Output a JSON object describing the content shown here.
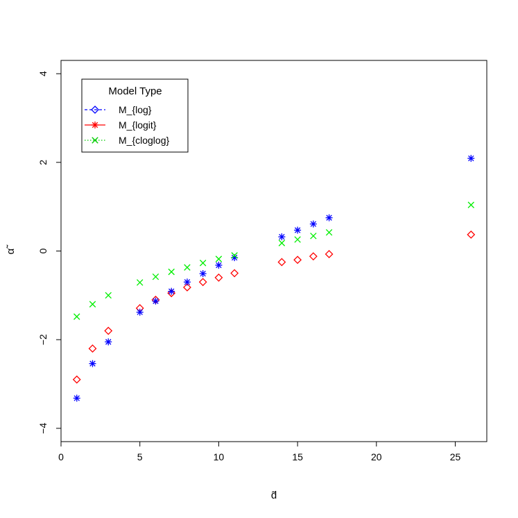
{
  "chart_data": {
    "type": "scatter",
    "xlabel": "d̃",
    "ylabel": "α̃",
    "xlim": [
      0,
      27
    ],
    "ylim": [
      -4.3,
      4.3
    ],
    "xticks": [
      0,
      5,
      10,
      15,
      20,
      25
    ],
    "yticks": [
      -4,
      -2,
      0,
      2,
      4
    ],
    "grid": false,
    "legend": {
      "title": "Model Type",
      "placement": "top-left",
      "entries": [
        {
          "label": "M_{log}",
          "color": "#0000ff",
          "marker": "diamond",
          "line": "dashed"
        },
        {
          "label": "M_{logit}",
          "color": "#ff0000",
          "marker": "asterisk",
          "line": "solid"
        },
        {
          "label": "M_{cloglog}",
          "color": "#00cc00",
          "marker": "cross",
          "line": "dotted"
        }
      ]
    },
    "series": [
      {
        "color": "#ff0000",
        "marker": "diamond",
        "x": [
          1,
          2,
          3,
          5,
          6,
          7,
          8,
          9,
          10,
          11,
          14,
          15,
          16,
          17,
          26
        ],
        "y": [
          -2.9,
          -2.2,
          -1.8,
          -1.29,
          -1.1,
          -0.95,
          -0.82,
          -0.7,
          -0.6,
          -0.5,
          -0.25,
          -0.2,
          -0.12,
          -0.07,
          0.37
        ]
      },
      {
        "color": "#0000ff",
        "marker": "asterisk",
        "x": [
          1,
          2,
          3,
          5,
          6,
          7,
          8,
          9,
          10,
          11,
          14,
          15,
          16,
          17,
          26
        ],
        "y": [
          -3.32,
          -2.54,
          -2.05,
          -1.38,
          -1.13,
          -0.91,
          -0.7,
          -0.51,
          -0.32,
          -0.15,
          0.32,
          0.47,
          0.61,
          0.75,
          2.09
        ]
      },
      {
        "color": "#00ee00",
        "marker": "cross",
        "x": [
          1,
          2,
          3,
          5,
          6,
          7,
          8,
          9,
          10,
          11,
          14,
          15,
          16,
          17,
          26
        ],
        "y": [
          -1.48,
          -1.2,
          -1.0,
          -0.71,
          -0.58,
          -0.47,
          -0.37,
          -0.27,
          -0.18,
          -0.1,
          0.18,
          0.26,
          0.34,
          0.42,
          1.04
        ]
      }
    ]
  }
}
